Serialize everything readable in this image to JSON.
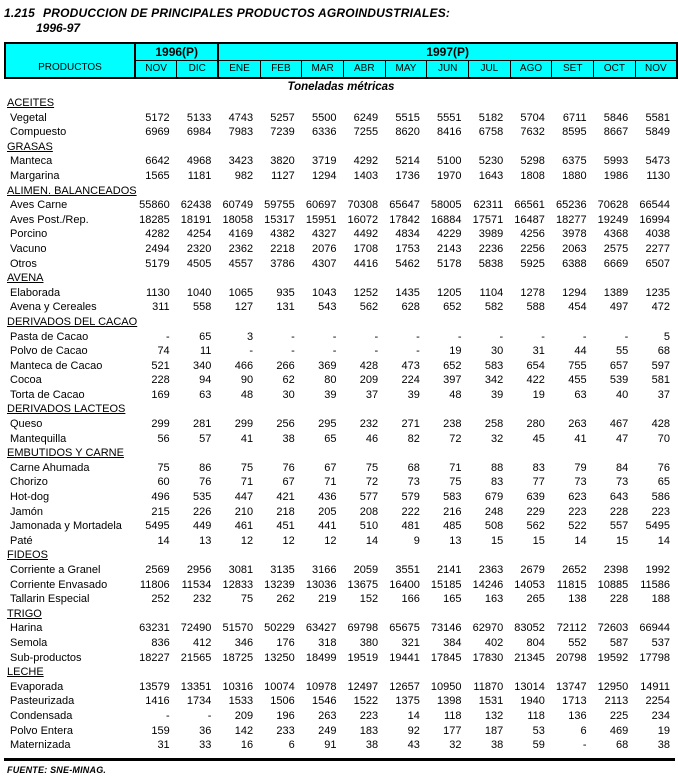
{
  "colors": {
    "header_bg": "#00ffff",
    "text": "#000000",
    "page_bg": "#ffffff"
  },
  "title": {
    "number": "1.215",
    "text": "PRODUCCION DE PRINCIPALES PRODUCTOS AGROINDUSTRIALES:",
    "subtitle": "1996-97"
  },
  "units_label": "Toneladas métricas",
  "footer": "FUENTE: SNE-MINAG.",
  "header": {
    "products_label": "PRODUCTOS",
    "year_groups": [
      {
        "label": "1996(P)",
        "months": [
          "NOV",
          "DIC"
        ]
      },
      {
        "label": "1997(P)",
        "months": [
          "ENE",
          "FEB",
          "MAR",
          "ABR",
          "MAY",
          "JUN",
          "JUL",
          "AGO",
          "SET",
          "OCT",
          "NOV"
        ]
      }
    ]
  },
  "groups": [
    {
      "name": "ACEITES",
      "rows": [
        {
          "label": "Vegetal",
          "values": [
            "5172",
            "5133",
            "4743",
            "5257",
            "5500",
            "6249",
            "5515",
            "5551",
            "5182",
            "5704",
            "6711",
            "5846",
            "5581"
          ]
        },
        {
          "label": "Compuesto",
          "values": [
            "6969",
            "6984",
            "7983",
            "7239",
            "6336",
            "7255",
            "8620",
            "8416",
            "6758",
            "7632",
            "8595",
            "8667",
            "5849"
          ]
        }
      ]
    },
    {
      "name": "GRASAS",
      "rows": [
        {
          "label": "Manteca",
          "values": [
            "6642",
            "4968",
            "3423",
            "3820",
            "3719",
            "4292",
            "5214",
            "5100",
            "5230",
            "5298",
            "6375",
            "5993",
            "5473"
          ]
        },
        {
          "label": "Margarina",
          "values": [
            "1565",
            "1181",
            "982",
            "1127",
            "1294",
            "1403",
            "1736",
            "1970",
            "1643",
            "1808",
            "1880",
            "1986",
            "1130"
          ]
        }
      ]
    },
    {
      "name": "ALIMEN. BALANCEADOS",
      "rows": [
        {
          "label": "Aves Carne",
          "values": [
            "55860",
            "62438",
            "60749",
            "59755",
            "60697",
            "70308",
            "65647",
            "58005",
            "62311",
            "66561",
            "65236",
            "70628",
            "66544"
          ]
        },
        {
          "label": "Aves Post./Rep.",
          "values": [
            "18285",
            "18191",
            "18058",
            "15317",
            "15951",
            "16072",
            "17842",
            "16884",
            "17571",
            "16487",
            "18277",
            "19249",
            "16994"
          ]
        },
        {
          "label": "Porcino",
          "values": [
            "4282",
            "4254",
            "4169",
            "4382",
            "4327",
            "4492",
            "4834",
            "4229",
            "3989",
            "4256",
            "3978",
            "4368",
            "4038"
          ]
        },
        {
          "label": "Vacuno",
          "values": [
            "2494",
            "2320",
            "2362",
            "2218",
            "2076",
            "1708",
            "1753",
            "2143",
            "2236",
            "2256",
            "2063",
            "2575",
            "2277"
          ]
        },
        {
          "label": "Otros",
          "values": [
            "5179",
            "4505",
            "4557",
            "3786",
            "4307",
            "4416",
            "5462",
            "5178",
            "5838",
            "5925",
            "6388",
            "6669",
            "6507"
          ]
        }
      ]
    },
    {
      "name": "AVENA",
      "rows": [
        {
          "label": "Elaborada",
          "values": [
            "1130",
            "1040",
            "1065",
            "935",
            "1043",
            "1252",
            "1435",
            "1205",
            "1104",
            "1278",
            "1294",
            "1389",
            "1235"
          ]
        },
        {
          "label": "Avena y Cereales",
          "values": [
            "311",
            "558",
            "127",
            "131",
            "543",
            "562",
            "628",
            "652",
            "582",
            "588",
            "454",
            "497",
            "472"
          ]
        }
      ]
    },
    {
      "name": "DERIVADOS DEL CACAO",
      "rows": [
        {
          "label": "Pasta de Cacao",
          "values": [
            "-",
            "65",
            "3",
            "-",
            "-",
            "-",
            "-",
            "-",
            "-",
            "-",
            "-",
            "-",
            "5"
          ]
        },
        {
          "label": "Polvo de Cacao",
          "values": [
            "74",
            "11",
            "-",
            "-",
            "-",
            "-",
            "-",
            "19",
            "30",
            "31",
            "44",
            "55",
            "68"
          ]
        },
        {
          "label": "Manteca de Cacao",
          "values": [
            "521",
            "340",
            "466",
            "266",
            "369",
            "428",
            "473",
            "652",
            "583",
            "654",
            "755",
            "657",
            "597"
          ]
        },
        {
          "label": "Cocoa",
          "values": [
            "228",
            "94",
            "90",
            "62",
            "80",
            "209",
            "224",
            "397",
            "342",
            "422",
            "455",
            "539",
            "581"
          ]
        },
        {
          "label": "Torta de Cacao",
          "values": [
            "169",
            "63",
            "48",
            "30",
            "39",
            "37",
            "39",
            "48",
            "39",
            "19",
            "63",
            "40",
            "37"
          ]
        }
      ]
    },
    {
      "name": "DERIVADOS LACTEOS",
      "rows": [
        {
          "label": "Queso",
          "values": [
            "299",
            "281",
            "299",
            "256",
            "295",
            "232",
            "271",
            "238",
            "258",
            "280",
            "263",
            "467",
            "428"
          ]
        },
        {
          "label": "Mantequilla",
          "values": [
            "56",
            "57",
            "41",
            "38",
            "65",
            "46",
            "82",
            "72",
            "32",
            "45",
            "41",
            "47",
            "70"
          ]
        }
      ]
    },
    {
      "name": "EMBUTIDOS Y CARNE",
      "rows": [
        {
          "label": "Carne Ahumada",
          "values": [
            "75",
            "86",
            "75",
            "76",
            "67",
            "75",
            "68",
            "71",
            "88",
            "83",
            "79",
            "84",
            "76"
          ]
        },
        {
          "label": "Chorizo",
          "values": [
            "60",
            "76",
            "71",
            "67",
            "71",
            "72",
            "73",
            "75",
            "83",
            "77",
            "73",
            "73",
            "65"
          ]
        },
        {
          "label": "Hot-dog",
          "values": [
            "496",
            "535",
            "447",
            "421",
            "436",
            "577",
            "579",
            "583",
            "679",
            "639",
            "623",
            "643",
            "586"
          ]
        },
        {
          "label": "Jamón",
          "values": [
            "215",
            "226",
            "210",
            "218",
            "205",
            "208",
            "222",
            "216",
            "248",
            "229",
            "223",
            "228",
            "223"
          ]
        },
        {
          "label": "Jamonada y Mortadela",
          "values": [
            "5495",
            "449",
            "461",
            "451",
            "441",
            "510",
            "481",
            "485",
            "508",
            "562",
            "522",
            "557",
            "5495"
          ]
        },
        {
          "label": "Paté",
          "values": [
            "14",
            "13",
            "12",
            "12",
            "12",
            "14",
            "9",
            "13",
            "15",
            "15",
            "14",
            "15",
            "14"
          ]
        }
      ]
    },
    {
      "name": "FIDEOS",
      "rows": [
        {
          "label": "Corriente a Granel",
          "values": [
            "2569",
            "2956",
            "3081",
            "3135",
            "3166",
            "2059",
            "3551",
            "2141",
            "2363",
            "2679",
            "2652",
            "2398",
            "1992"
          ]
        },
        {
          "label": "Corriente Envasado",
          "values": [
            "11806",
            "11534",
            "12833",
            "13239",
            "13036",
            "13675",
            "16400",
            "15185",
            "14246",
            "14053",
            "11815",
            "10885",
            "11586"
          ]
        },
        {
          "label": "Tallarin Especial",
          "values": [
            "252",
            "232",
            "75",
            "262",
            "219",
            "152",
            "166",
            "165",
            "163",
            "265",
            "138",
            "228",
            "188"
          ]
        }
      ]
    },
    {
      "name": "TRIGO",
      "rows": [
        {
          "label": "Harina",
          "values": [
            "63231",
            "72490",
            "51570",
            "50229",
            "63427",
            "69798",
            "65675",
            "73146",
            "62970",
            "83052",
            "72112",
            "72603",
            "66944"
          ]
        },
        {
          "label": "Semola",
          "values": [
            "836",
            "412",
            "346",
            "176",
            "318",
            "380",
            "321",
            "384",
            "402",
            "804",
            "552",
            "587",
            "537"
          ]
        },
        {
          "label": "Sub-productos",
          "values": [
            "18227",
            "21565",
            "18725",
            "13250",
            "18499",
            "19519",
            "19441",
            "17845",
            "17830",
            "21345",
            "20798",
            "19592",
            "17798"
          ]
        }
      ]
    },
    {
      "name": "LECHE",
      "rows": [
        {
          "label": "Evaporada",
          "values": [
            "13579",
            "13351",
            "10316",
            "10074",
            "10978",
            "12497",
            "12657",
            "10950",
            "11870",
            "13014",
            "13747",
            "12950",
            "14911"
          ]
        },
        {
          "label": "Pasteurizada",
          "values": [
            "1416",
            "1734",
            "1533",
            "1506",
            "1546",
            "1522",
            "1375",
            "1398",
            "1531",
            "1940",
            "1713",
            "2113",
            "2254"
          ]
        },
        {
          "label": "Condensada",
          "values": [
            "-",
            "-",
            "209",
            "196",
            "263",
            "223",
            "14",
            "118",
            "132",
            "118",
            "136",
            "225",
            "234"
          ]
        },
        {
          "label": "Polvo Entera",
          "values": [
            "159",
            "36",
            "142",
            "233",
            "249",
            "183",
            "92",
            "177",
            "187",
            "53",
            "6",
            "469",
            "19"
          ]
        },
        {
          "label": "Maternizada",
          "values": [
            "31",
            "33",
            "16",
            "6",
            "91",
            "38",
            "43",
            "32",
            "38",
            "59",
            "-",
            "68",
            "38"
          ]
        }
      ]
    }
  ]
}
